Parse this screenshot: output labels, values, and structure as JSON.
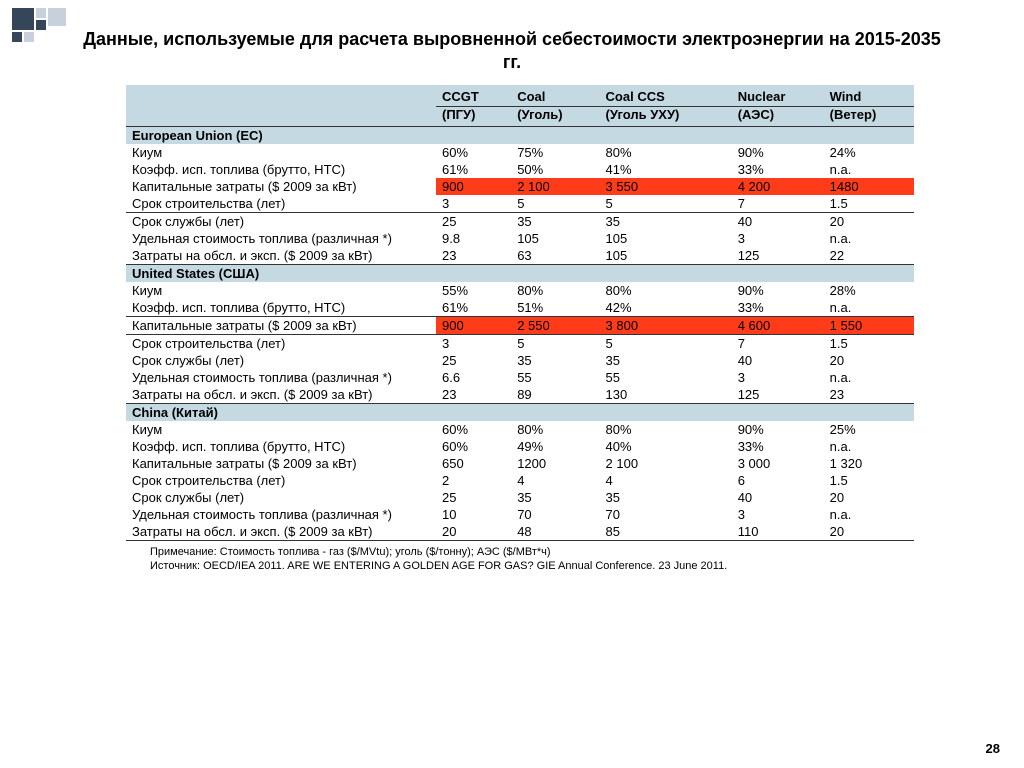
{
  "title": "Данные, используемые для расчета выровненной себестоимости электроэнергии на 2015-2035 гг.",
  "page_number": "28",
  "deco_colors": {
    "dark": "#36465a",
    "light": "#c8d0db"
  },
  "columns": {
    "c1": {
      "top": "CCGT",
      "sub": "(ПГУ)"
    },
    "c2": {
      "top": "Coal",
      "sub": "(Уголь)"
    },
    "c3": {
      "top": "Coal CCS",
      "sub": "(Уголь УХУ)"
    },
    "c4": {
      "top": "Nuclear",
      "sub": "(АЭС)"
    },
    "c5": {
      "top": "Wind",
      "sub": "(Ветер)"
    }
  },
  "sections": [
    {
      "name": "European Union (EC)",
      "rows": [
        {
          "label": "Киум",
          "vals": [
            "60%",
            "75%",
            "80%",
            "90%",
            "24%"
          ]
        },
        {
          "label": "Коэфф. исп. топлива (брутто, HTC)",
          "vals": [
            "61%",
            "50%",
            "41%",
            "33%",
            "n.a."
          ]
        },
        {
          "label": "Капитальные затраты ($ 2009 за кВт)",
          "vals": [
            "900",
            "2 100",
            "3 550",
            "4 200",
            "1480"
          ],
          "hl": true
        },
        {
          "label": "Срок строительства (лет)",
          "vals": [
            "3",
            "5",
            "5",
            "7",
            "1.5"
          ]
        },
        {
          "label": "Срок службы (лет)",
          "vals": [
            "25",
            "35",
            "35",
            "40",
            "20"
          ],
          "top": true
        },
        {
          "label": "Удельная стоимость топлива (различная *)",
          "vals": [
            "9.8",
            "105",
            "105",
            "3",
            "n.a."
          ]
        },
        {
          "label": "Затраты на обсл. и эксп. ($ 2009 за кВт)",
          "vals": [
            "23",
            "63",
            "105",
            "125",
            "22"
          ],
          "last": true
        }
      ]
    },
    {
      "name": "United States (США)",
      "rows": [
        {
          "label": "Киум",
          "vals": [
            "55%",
            "80%",
            "80%",
            "90%",
            "28%"
          ]
        },
        {
          "label": "Коэфф. исп. топлива (брутто, HTC)",
          "vals": [
            "61%",
            "51%",
            "42%",
            "33%",
            "n.a."
          ]
        },
        {
          "label": "Капитальные затраты ($ 2009 за кВт)",
          "vals": [
            "900",
            "2 550",
            "3 800",
            "4 600",
            "1 550"
          ],
          "hl": true,
          "top": true
        },
        {
          "label": "Срок строительства (лет)",
          "vals": [
            "3",
            "5",
            "5",
            "7",
            "1.5"
          ],
          "top": true
        },
        {
          "label": "Срок службы (лет)",
          "vals": [
            "25",
            "35",
            "35",
            "40",
            "20"
          ]
        },
        {
          "label": "Удельная стоимость топлива (различная *)",
          "vals": [
            "6.6",
            "55",
            "55",
            "3",
            "n.a."
          ]
        },
        {
          "label": "Затраты на обсл. и эксп. ($ 2009 за кВт)",
          "vals": [
            "23",
            "89",
            "130",
            "125",
            "23"
          ],
          "last": true
        }
      ]
    },
    {
      "name": "China (Китай)",
      "rows": [
        {
          "label": "Киум",
          "vals": [
            "60%",
            "80%",
            "80%",
            "90%",
            "25%"
          ]
        },
        {
          "label": "Коэфф. исп. топлива (брутто, HTC)",
          "vals": [
            "60%",
            "49%",
            "40%",
            "33%",
            "n.a."
          ]
        },
        {
          "label": "Капитальные затраты ($ 2009 за кВт)",
          "vals": [
            "650",
            "1200",
            "2 100",
            "3 000",
            "1 320"
          ]
        },
        {
          "label": "Срок строительства (лет)",
          "vals": [
            "2",
            "4",
            "4",
            "6",
            "1.5"
          ]
        },
        {
          "label": "Срок службы (лет)",
          "vals": [
            "25",
            "35",
            "35",
            "40",
            "20"
          ]
        },
        {
          "label": "Удельная стоимость топлива (различная *)",
          "vals": [
            "10",
            "70",
            "70",
            "3",
            "n.a."
          ]
        },
        {
          "label": "Затраты на обсл. и эксп. ($ 2009 за кВт)",
          "vals": [
            "20",
            "48",
            "85",
            "110",
            "20"
          ],
          "last": true
        }
      ]
    }
  ],
  "footnote": {
    "line1": "Примечание: Стоимость топлива - газ ($/MVtu); уголь ($/тонну); АЭС ($/МВт*ч)",
    "line2": "Источник: OECD/IEA 2011. ARE WE ENTERING A GOLDEN AGE FOR GAS? GIE Annual Conference. 23 June 2011."
  }
}
